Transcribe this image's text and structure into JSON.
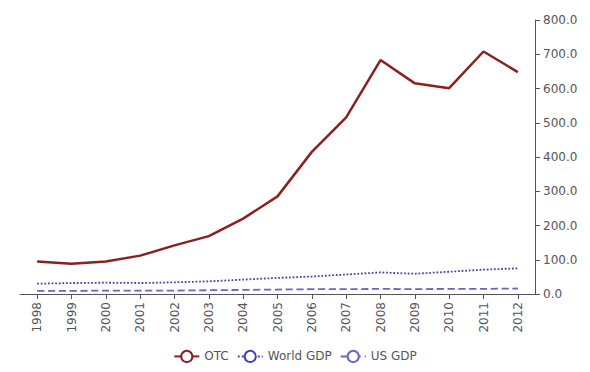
{
  "chart_data": {
    "type": "line",
    "x": [
      1998,
      1999,
      2000,
      2001,
      2002,
      2003,
      2004,
      2005,
      2006,
      2007,
      2008,
      2009,
      2010,
      2011,
      2012
    ],
    "series": [
      {
        "name": "OTC",
        "color": "#8B2020",
        "line_style": "solid",
        "values": [
          95,
          88,
          95,
          112,
          142,
          169,
          220,
          285,
          415,
          516,
          683,
          615,
          601,
          708,
          648
        ]
      },
      {
        "name": "World GDP",
        "color": "#4444AA",
        "line_style": "dotted",
        "values": [
          30,
          32,
          33,
          32,
          34,
          37,
          42,
          47,
          51,
          57,
          63,
          59,
          65,
          71,
          75
        ]
      },
      {
        "name": "US GDP",
        "color": "#6666CC",
        "line_style": "dashed",
        "values": [
          9,
          9,
          10,
          10,
          10,
          11,
          12,
          13,
          14,
          14,
          15,
          14,
          15,
          15,
          16
        ]
      }
    ],
    "xlim": [
      1997.5,
      2012.5
    ],
    "xticks": [
      1998,
      1999,
      2000,
      2001,
      2002,
      2003,
      2004,
      2005,
      2006,
      2007,
      2008,
      2009,
      2010,
      2011,
      2012
    ],
    "ylim": [
      0,
      800
    ],
    "yticks": [
      {
        "value": 0,
        "label": "0.0"
      },
      {
        "value": 100,
        "label": "100.0"
      },
      {
        "value": 200,
        "label": "200.0"
      },
      {
        "value": 300,
        "label": "300.0"
      },
      {
        "value": 400,
        "label": "400.0"
      },
      {
        "value": 500,
        "label": "500.0"
      },
      {
        "value": 600,
        "label": "600.0"
      },
      {
        "value": 700,
        "label": "700.0"
      },
      {
        "value": 800,
        "label": "800.0"
      }
    ],
    "grid": false,
    "legend": "bottom"
  }
}
